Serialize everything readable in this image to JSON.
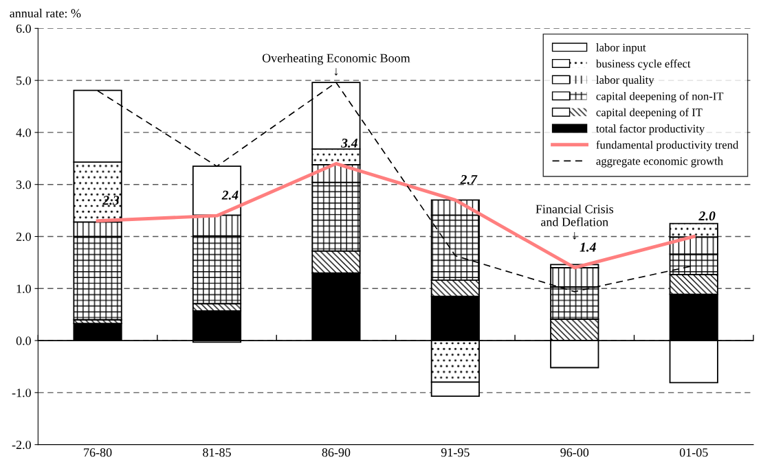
{
  "chart_data": {
    "type": "bar",
    "stacked": true,
    "ylabel": "annual rate: %",
    "categories": [
      "76-80",
      "81-85",
      "86-90",
      "91-95",
      "96-00",
      "01-05"
    ],
    "ylim": [
      -2,
      6
    ],
    "yticks": [
      {
        "value": -2,
        "label": "-2.0"
      },
      {
        "value": -1,
        "label": "-1.0"
      },
      {
        "value": 0,
        "label": "0.0"
      },
      {
        "value": 1,
        "label": "1.0"
      },
      {
        "value": 2,
        "label": "2.0"
      },
      {
        "value": 3,
        "label": "3.0"
      },
      {
        "value": 4,
        "label": "4.0"
      },
      {
        "value": 5,
        "label": "5.0"
      },
      {
        "value": 6,
        "label": "6.0"
      }
    ],
    "grid": "y",
    "legend": "top right",
    "series": [
      {
        "name": "total factor productivity",
        "color": "#000000",
        "values": [
          0.33,
          0.57,
          1.3,
          0.85,
          0.0,
          0.89
        ]
      },
      {
        "name": "capital deepening of IT",
        "color": "#ffffff",
        "values": [
          0.07,
          0.14,
          0.42,
          0.31,
          0.41,
          0.38
        ]
      },
      {
        "name": "capital deepening of non-IT",
        "color": "#ffffff",
        "values": [
          1.6,
          1.3,
          1.32,
          1.25,
          0.62,
          0.39
        ]
      },
      {
        "name": "labor quality",
        "color": "#ffffff",
        "values": [
          0.28,
          0.4,
          0.34,
          0.29,
          0.37,
          0.33
        ]
      },
      {
        "name": "business cycle effect",
        "color": "#ffffff",
        "values": [
          1.15,
          -0.03,
          0.3,
          -0.8,
          0.06,
          0.26
        ]
      },
      {
        "name": "labor input",
        "color": "#ffffff",
        "values": [
          1.38,
          0.94,
          1.28,
          -0.27,
          -0.52,
          -0.81
        ]
      },
      {
        "name": "fundamental productivity trend",
        "type": "line",
        "color": "#ff7f7f",
        "values": [
          2.3,
          2.4,
          3.4,
          2.7,
          1.4,
          2.0
        ],
        "value_labels": [
          "2.3",
          "2.4",
          "3.4",
          "2.7",
          "1.4",
          "2.0"
        ]
      },
      {
        "name": "aggregate economic growth",
        "type": "line",
        "color": "#000000",
        "line_style": "dashed",
        "values": [
          4.8,
          3.35,
          4.96,
          1.63,
          0.94,
          1.44
        ]
      }
    ],
    "annotations": [
      "Overheating Economic Boom\n↓",
      "Financial Crisis\nand Deflation\n↓"
    ]
  }
}
